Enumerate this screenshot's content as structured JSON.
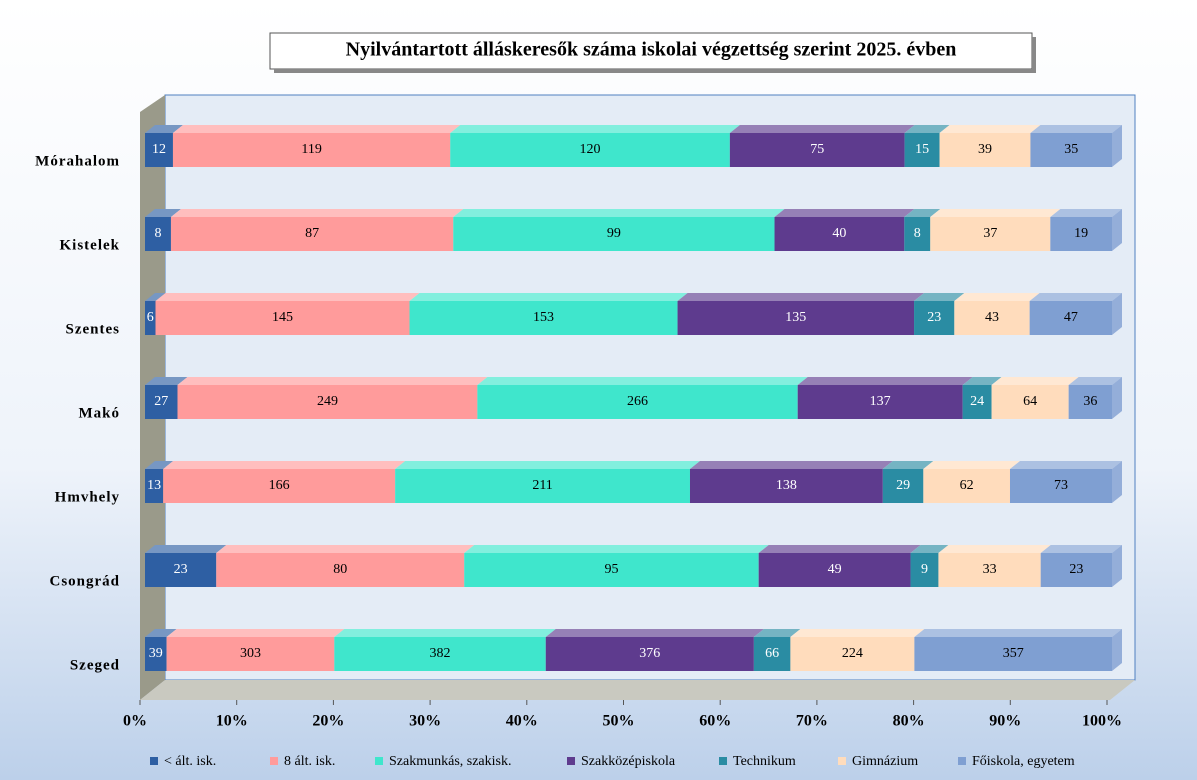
{
  "chart_data": {
    "type": "bar_stacked_percent",
    "title": "Nyilvántartott álláskeresők száma iskolai végzettség szerint 2025. évben",
    "categories": [
      "Mórahalom",
      "Kistelek",
      "Szentes",
      "Makó",
      "Hmvhely",
      "Csongrád",
      "Szeged"
    ],
    "series": [
      {
        "name": "< ált. isk.",
        "color": "#2e5fa3",
        "values": [
          12,
          8,
          6,
          27,
          13,
          23,
          39
        ]
      },
      {
        "name": "8 ált. isk.",
        "color": "#ff9b9b",
        "values": [
          119,
          87,
          145,
          249,
          166,
          80,
          303
        ]
      },
      {
        "name": "Szakmunkás, szakisk.",
        "color": "#3fe6cc",
        "values": [
          120,
          99,
          153,
          266,
          211,
          95,
          382
        ]
      },
      {
        "name": "Szakközépiskola",
        "color": "#5e3b8e",
        "values": [
          75,
          40,
          135,
          137,
          138,
          49,
          376
        ]
      },
      {
        "name": "Technikum",
        "color": "#2a8ca3",
        "values": [
          15,
          8,
          23,
          24,
          29,
          9,
          66
        ]
      },
      {
        "name": "Gimnázium",
        "color": "#ffdcbc",
        "values": [
          39,
          37,
          43,
          64,
          62,
          33,
          224
        ]
      },
      {
        "name": "Főiskola, egyetem",
        "color": "#7f9fd2",
        "values": [
          35,
          19,
          47,
          36,
          73,
          23,
          357
        ]
      }
    ],
    "xlim": [
      0,
      100
    ],
    "xticks": [
      {
        "value": 0,
        "label": "0%"
      },
      {
        "value": 10,
        "label": "10%"
      },
      {
        "value": 20,
        "label": "20%"
      },
      {
        "value": 30,
        "label": "30%"
      },
      {
        "value": 40,
        "label": "40%"
      },
      {
        "value": 50,
        "label": "50%"
      },
      {
        "value": 60,
        "label": "60%"
      },
      {
        "value": 70,
        "label": "70%"
      },
      {
        "value": 80,
        "label": "80%"
      },
      {
        "value": 90,
        "label": "90%"
      },
      {
        "value": 100,
        "label": "100%"
      }
    ],
    "legend": "bottom"
  }
}
